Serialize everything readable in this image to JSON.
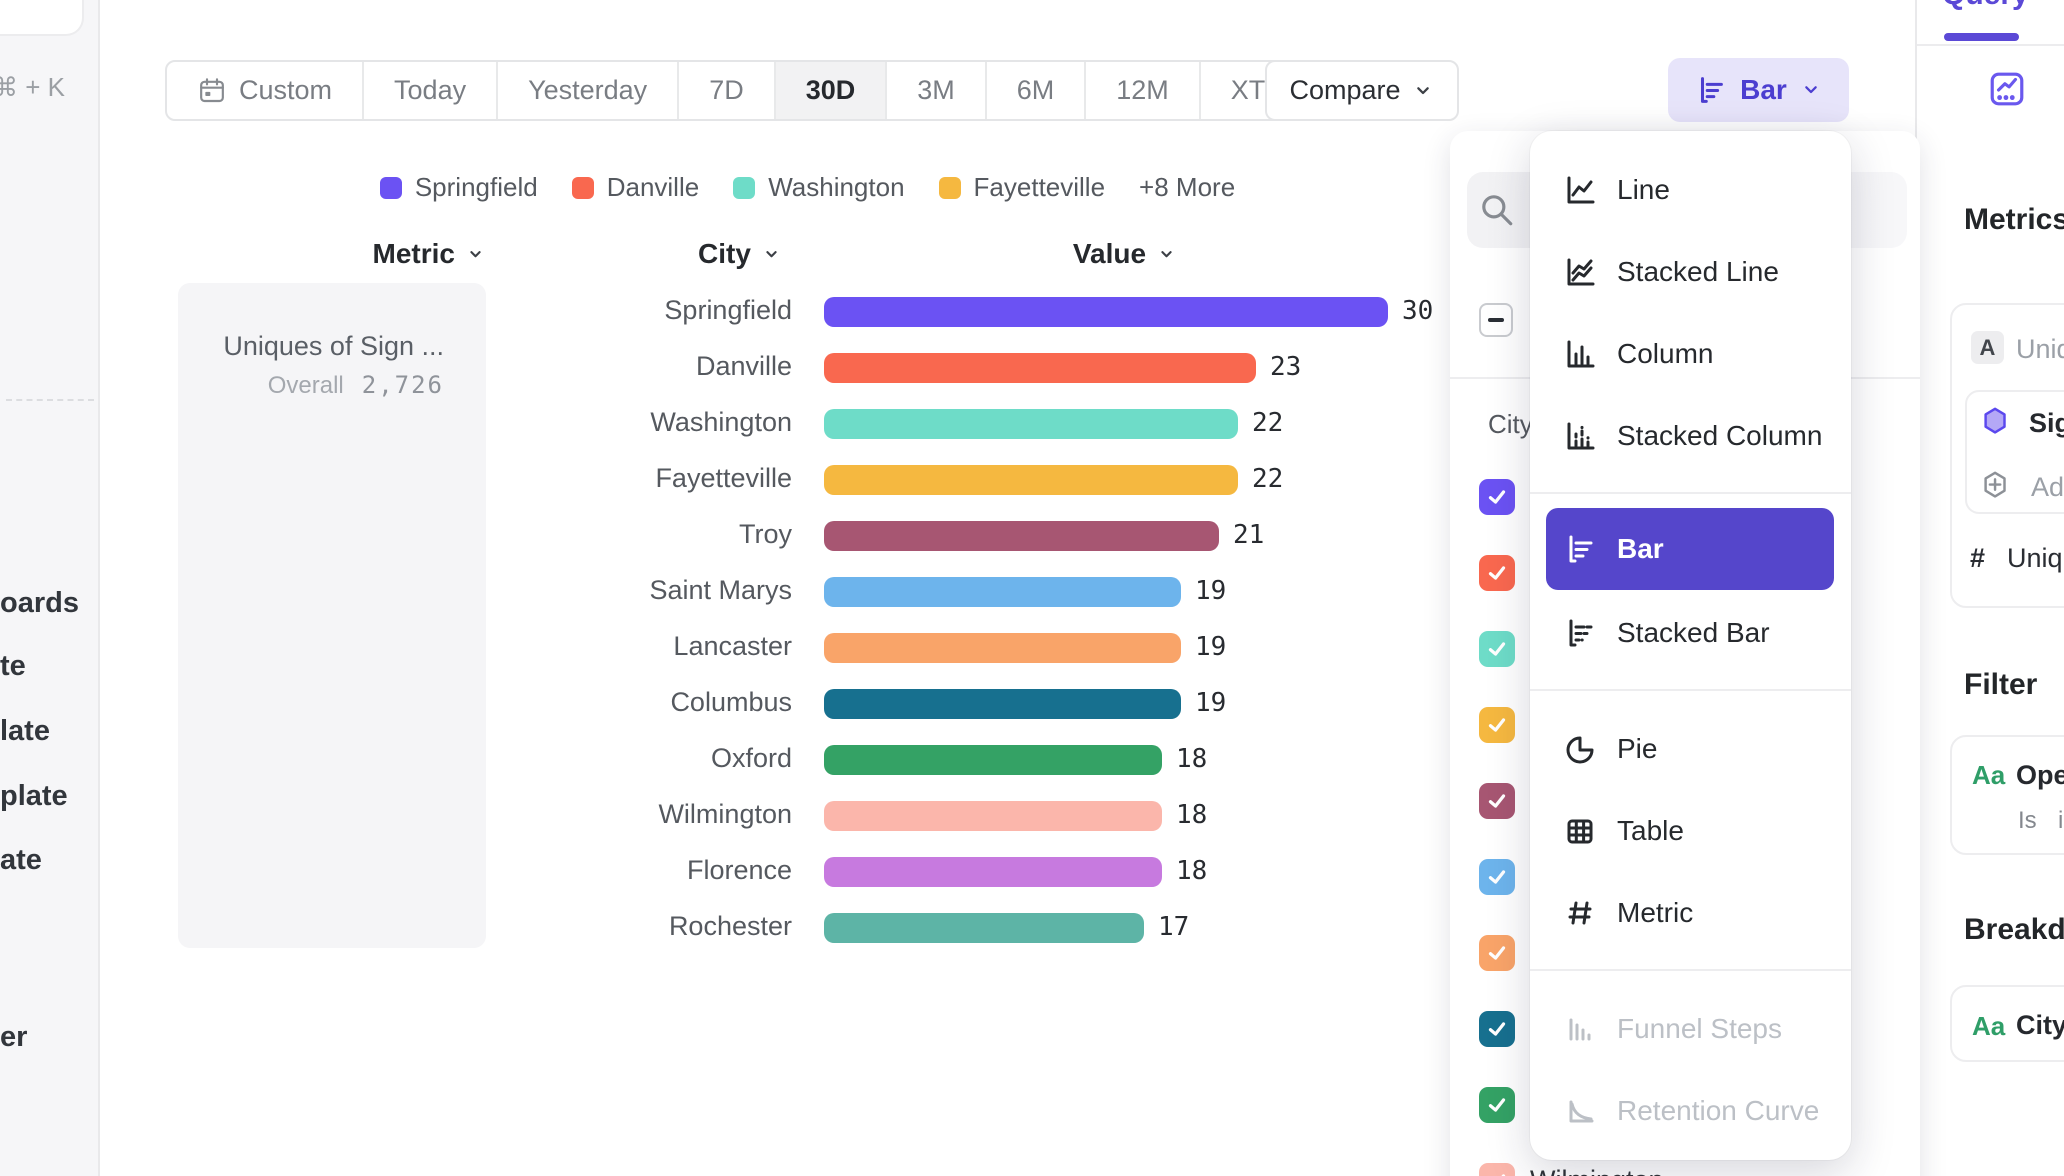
{
  "left_nav": {
    "search_shortcut": "⌘ + K",
    "items": [
      "oards",
      "te",
      "late",
      "plate",
      "ate",
      "er"
    ]
  },
  "toolbar": {
    "date_ranges": [
      {
        "label": "Custom",
        "icon": "calendar-icon"
      },
      {
        "label": "Today"
      },
      {
        "label": "Yesterday"
      },
      {
        "label": "7D"
      },
      {
        "label": "30D",
        "selected": true
      },
      {
        "label": "3M"
      },
      {
        "label": "6M"
      },
      {
        "label": "12M"
      },
      {
        "label": "XTD",
        "chevron": true
      }
    ],
    "compare_label": "Compare",
    "chart_type_button_label": "Bar"
  },
  "chart": {
    "legend": {
      "visible_items": [
        {
          "label": "Springfield",
          "color": "#6b52f3"
        },
        {
          "label": "Danville",
          "color": "#f9684f"
        },
        {
          "label": "Washington",
          "color": "#6edcc8"
        },
        {
          "label": "Fayetteville",
          "color": "#f5b840"
        }
      ],
      "more_label": "+8 More"
    },
    "headers": {
      "metric": "Metric",
      "city": "City",
      "value": "Value"
    },
    "metric_card": {
      "title": "Uniques of Sign ...",
      "overall_label": "Overall",
      "overall_value": "2,726"
    }
  },
  "chart_data": {
    "type": "bar",
    "orientation": "horizontal",
    "series_name": "Uniques of Sign ...",
    "categories": [
      "Springfield",
      "Danville",
      "Washington",
      "Fayetteville",
      "Troy",
      "Saint Marys",
      "Lancaster",
      "Columbus",
      "Oxford",
      "Wilmington",
      "Florence",
      "Rochester"
    ],
    "values": [
      30,
      23,
      22,
      22,
      21,
      19,
      19,
      19,
      18,
      18,
      18,
      17
    ],
    "colors": [
      "#6b52f3",
      "#f9684f",
      "#6edcc8",
      "#f5b840",
      "#a75672",
      "#6db4ec",
      "#f9a469",
      "#17708f",
      "#34a265",
      "#fbb6ab",
      "#c77adf",
      "#5db4a6"
    ],
    "xlim": [
      0,
      30
    ],
    "overall_total": 2726
  },
  "city_selector": {
    "group_label": "City",
    "select_all_state": "indeterminate",
    "checkbox_colors": [
      "#6b52f3",
      "#f9684f",
      "#6edcc8",
      "#f5b840",
      "#a75672",
      "#6db4ec",
      "#f9a469",
      "#17708f",
      "#34a265",
      "#fbb6ab"
    ],
    "partially_visible_item": "Wilmington"
  },
  "chart_type_menu": {
    "selected_color": "#5546cb",
    "items": [
      {
        "label": "Line",
        "icon": "line-chart-icon"
      },
      {
        "label": "Stacked Line",
        "icon": "stacked-line-chart-icon"
      },
      {
        "label": "Column",
        "icon": "column-chart-icon"
      },
      {
        "label": "Stacked Column",
        "icon": "stacked-column-chart-icon",
        "divider_after": true
      },
      {
        "label": "Bar",
        "icon": "bar-chart-icon",
        "selected": true
      },
      {
        "label": "Stacked Bar",
        "icon": "stacked-bar-chart-icon",
        "divider_after": true
      },
      {
        "label": "Pie",
        "icon": "pie-chart-icon"
      },
      {
        "label": "Table",
        "icon": "table-chart-icon"
      },
      {
        "label": "Metric",
        "icon": "metric-hash-icon",
        "divider_after": true
      },
      {
        "label": "Funnel Steps",
        "icon": "funnel-chart-icon",
        "disabled": true
      },
      {
        "label": "Retention Curve",
        "icon": "retention-chart-icon",
        "disabled": true
      }
    ]
  },
  "query_panel": {
    "tab_label": "Query",
    "metrics_heading": "Metrics",
    "filter_heading": "Filter",
    "breakdown_heading": "Breakdown",
    "metrics_rows": {
      "measure_badge": "A",
      "measure_text": "Uniques",
      "event_text": "Sign",
      "add_text": "Add",
      "prop_prefix": "#",
      "prop_text": "Uniques"
    },
    "filter_rows": {
      "badge": "Aa",
      "property": "Open",
      "operator": "Is",
      "value": "i"
    },
    "breakdown_rows": {
      "badge": "Aa",
      "property": "City"
    }
  }
}
